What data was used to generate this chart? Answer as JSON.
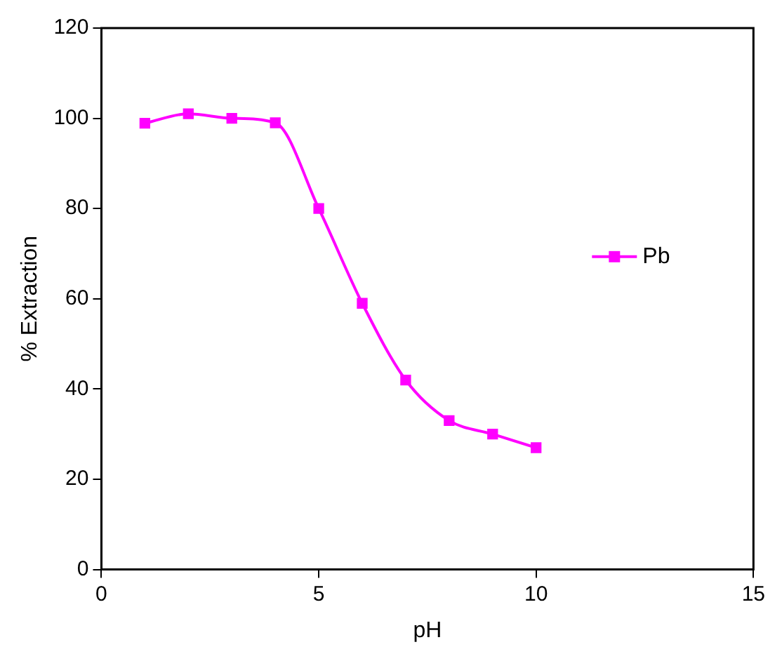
{
  "chart_data": {
    "type": "line",
    "xlabel": "pH",
    "ylabel": "% Extraction",
    "xlim": [
      0,
      15
    ],
    "xticks": [
      0,
      5,
      10,
      15
    ],
    "ylim": [
      0,
      120
    ],
    "yticks": [
      0,
      20,
      40,
      60,
      80,
      100,
      120
    ],
    "x": [
      1,
      2,
      3,
      4,
      5,
      6,
      7,
      8,
      9,
      10
    ],
    "series": [
      {
        "name": "Pb",
        "color": "#ff00ff",
        "values": [
          98.9,
          101,
          100,
          99,
          80,
          59,
          42,
          33,
          30,
          27
        ]
      }
    ],
    "marker": "square",
    "line_style": "solid",
    "legend": "right",
    "grid": false
  }
}
